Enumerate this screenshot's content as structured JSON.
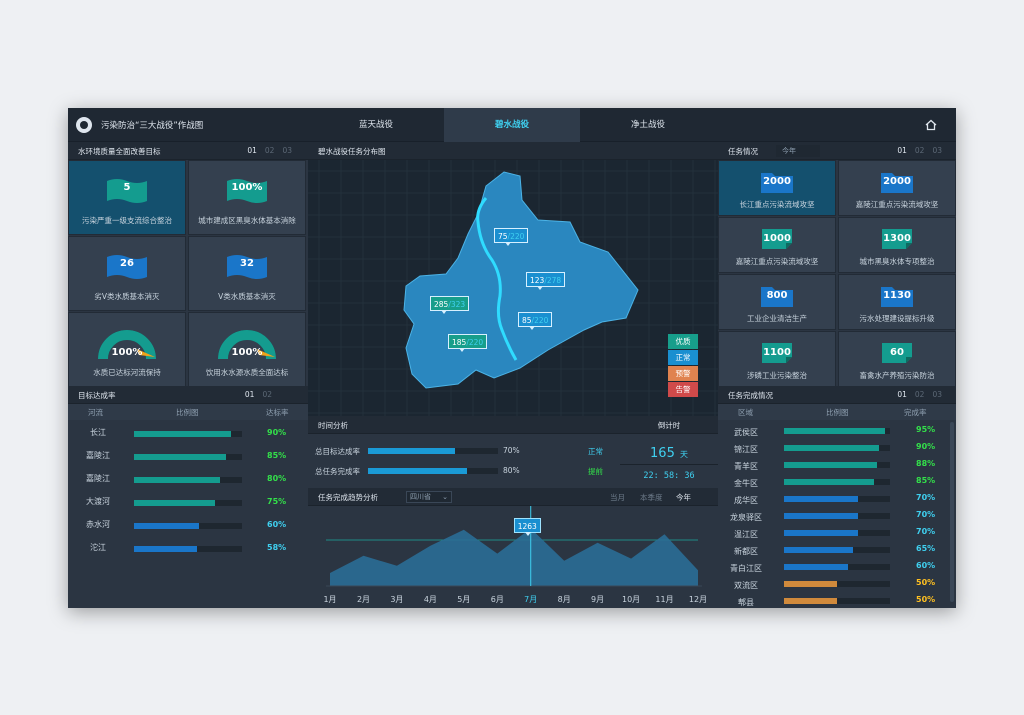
{
  "header": {
    "title": "污染防治“三大战役”作战图",
    "tabs": [
      "蓝天战役",
      "碧水战役",
      "净土战役"
    ]
  },
  "left_goals": {
    "title": "水环境质量全面改善目标",
    "pages": [
      "01",
      "02",
      "03"
    ],
    "tiles": [
      {
        "value": "5",
        "label": "污染严重一级支流综合整治"
      },
      {
        "value": "100%",
        "label": "城市建成区黑臭水体基本消除"
      },
      {
        "value": "26",
        "label": "劣Ⅴ类水质基本消灭"
      },
      {
        "value": "32",
        "label": "Ⅴ类水质基本消灭"
      },
      {
        "value": "100%",
        "label": "水质已达标河流保持",
        "level": 1.0
      },
      {
        "value": "100%",
        "label": "饮用水水源水质全面达标",
        "level": 1.0
      }
    ]
  },
  "left_rate": {
    "title": "目标达成率",
    "pages": [
      "01",
      "02"
    ],
    "cols": [
      "河流",
      "比例图",
      "达标率"
    ],
    "rows": [
      {
        "name": "长江",
        "pct": "90%",
        "value": 0.9,
        "kind": "teal"
      },
      {
        "name": "嘉陵江",
        "pct": "85%",
        "value": 0.85,
        "kind": "teal"
      },
      {
        "name": "嘉陵江",
        "pct": "80%",
        "value": 0.8,
        "kind": "teal"
      },
      {
        "name": "大渡河",
        "pct": "75%",
        "value": 0.75,
        "kind": "teal"
      },
      {
        "name": "赤水河",
        "pct": "60%",
        "value": 0.6,
        "kind": "blue"
      },
      {
        "name": "沱江",
        "pct": "58%",
        "value": 0.58,
        "kind": "blue"
      }
    ]
  },
  "map": {
    "title": "碧水战役任务分布图",
    "tags": [
      {
        "a": "75",
        "b": "/220"
      },
      {
        "a": "123",
        "b": "/278"
      },
      {
        "a": "285",
        "b": "/323"
      },
      {
        "a": "85",
        "b": "/220"
      },
      {
        "a": "185",
        "b": "/220"
      }
    ],
    "legend": [
      {
        "label": "优质",
        "color": "#179e8b"
      },
      {
        "label": "正常",
        "color": "#1a8fd0"
      },
      {
        "label": "预警",
        "color": "#e0834f"
      },
      {
        "label": "告警",
        "color": "#d04a4a"
      }
    ]
  },
  "time": {
    "title": "时间分析",
    "rows": [
      {
        "label": "总目标达成率",
        "pct": "70%",
        "value": 0.7,
        "status": "正常",
        "color": "#3fd0f0"
      },
      {
        "label": "总任务完成率",
        "pct": "80%",
        "value": 0.8,
        "status": "提前",
        "color": "#33e04a"
      }
    ]
  },
  "countdown": {
    "title": "倒计时",
    "days": "165",
    "unit": "天",
    "clock": "22: 58: 36"
  },
  "trend": {
    "title": "任务完成趋势分析",
    "region": "四川省",
    "periods": [
      "当月",
      "本季度",
      "今年"
    ],
    "callout": "1263"
  },
  "chart_data": {
    "type": "area",
    "x": [
      "1月",
      "2月",
      "3月",
      "4月",
      "5月",
      "6月",
      "7月",
      "8月",
      "9月",
      "10月",
      "11月",
      "12月"
    ],
    "series": [
      {
        "values": [
          18,
          42,
          28,
          56,
          78,
          45,
          80,
          35,
          60,
          38,
          72,
          22
        ]
      }
    ],
    "highlight": "7月"
  },
  "right_tasks": {
    "title": "任务情况",
    "filter": "今年",
    "pages": [
      "01",
      "02",
      "03"
    ],
    "tiles": [
      {
        "value": "2000",
        "label": "长江重点污染流域攻坚",
        "icon": "folder"
      },
      {
        "value": "2000",
        "label": "嘉陵江重点污染流域攻坚",
        "icon": "folder"
      },
      {
        "value": "1000",
        "label": "嘉陵江重点污染流域攻坚",
        "icon": "doc"
      },
      {
        "value": "1300",
        "label": "城市黑臭水体专项整治",
        "icon": "doc"
      },
      {
        "value": "800",
        "label": "工业企业清洁生产",
        "icon": "folder"
      },
      {
        "value": "1130",
        "label": "污水处理建设提标升级",
        "icon": "folder"
      },
      {
        "value": "1100",
        "label": "涉磷工业污染整治",
        "icon": "doc"
      },
      {
        "value": "60",
        "label": "畜禽水产养殖污染防治",
        "icon": "doc"
      }
    ]
  },
  "right_done": {
    "title": "任务完成情况",
    "pages": [
      "01",
      "02",
      "03"
    ],
    "cols": [
      "区域",
      "比例图",
      "完成率"
    ],
    "rows": [
      {
        "name": "武侯区",
        "pct": "95%",
        "value": 0.95,
        "kind": "teal"
      },
      {
        "name": "锦江区",
        "pct": "90%",
        "value": 0.9,
        "kind": "teal"
      },
      {
        "name": "青羊区",
        "pct": "88%",
        "value": 0.88,
        "kind": "teal"
      },
      {
        "name": "金牛区",
        "pct": "85%",
        "value": 0.85,
        "kind": "teal"
      },
      {
        "name": "成华区",
        "pct": "70%",
        "value": 0.7,
        "kind": "blue"
      },
      {
        "name": "龙泉驿区",
        "pct": "70%",
        "value": 0.7,
        "kind": "blue"
      },
      {
        "name": "温江区",
        "pct": "70%",
        "value": 0.7,
        "kind": "blue"
      },
      {
        "name": "新都区",
        "pct": "65%",
        "value": 0.65,
        "kind": "blue"
      },
      {
        "name": "青白江区",
        "pct": "60%",
        "value": 0.6,
        "kind": "blue"
      },
      {
        "name": "双流区",
        "pct": "50%",
        "value": 0.5,
        "kind": "orange"
      },
      {
        "name": "郫县",
        "pct": "50%",
        "value": 0.5,
        "kind": "orange"
      }
    ]
  },
  "colors": {
    "teal": "#149c8f",
    "blue": "#1a76c9",
    "orange": "#d08a3c",
    "green_text": "#33e04a",
    "cyan_text": "#3fd0f0",
    "orange_text": "#ffc021"
  }
}
